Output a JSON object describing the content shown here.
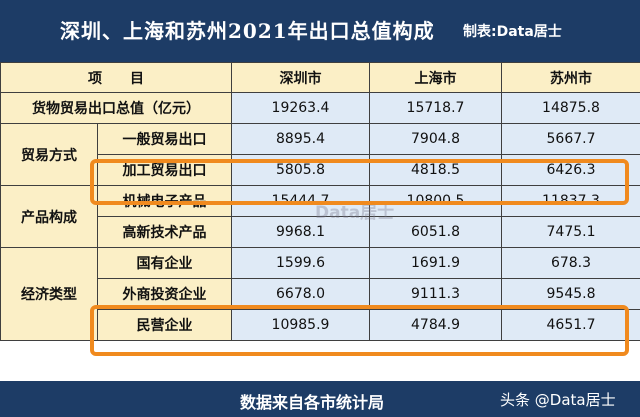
{
  "header": {
    "title": "深圳、上海和苏州2021年出口总值构成",
    "credit": "制表:Data居士"
  },
  "table": {
    "columns": [
      "项　　目",
      "深圳市",
      "上海市",
      "苏州市"
    ],
    "total_row": {
      "label": "货物贸易出口总值（亿元）",
      "values": [
        "19263.4",
        "15718.7",
        "14875.8"
      ]
    },
    "groups": [
      {
        "name": "贸易方式",
        "rows": [
          {
            "label": "一般贸易出口",
            "values": [
              "8895.4",
              "7904.8",
              "5667.7"
            ]
          },
          {
            "label": "加工贸易出口",
            "values": [
              "5805.8",
              "4818.5",
              "6426.3"
            ]
          }
        ]
      },
      {
        "name": "产品构成",
        "rows": [
          {
            "label": "机械电子产品",
            "values": [
              "15444.7",
              "10800.5",
              "11837.3"
            ]
          },
          {
            "label": "高新技术产品",
            "values": [
              "9968.1",
              "6051.8",
              "7475.1"
            ]
          }
        ]
      },
      {
        "name": "经济类型",
        "rows": [
          {
            "label": "国有企业",
            "values": [
              "1599.6",
              "1691.9",
              "678.3"
            ]
          },
          {
            "label": "外商投资企业",
            "values": [
              "6678.0",
              "9111.3",
              "9545.8"
            ]
          },
          {
            "label": "民营企业",
            "values": [
              "10985.9",
              "4784.9",
              "4651.7"
            ]
          }
        ]
      }
    ]
  },
  "watermark": "Data居士",
  "footer": {
    "source": "数据来自各市统计局",
    "platform_watermark": "头条 @Data居士"
  },
  "colors": {
    "header_bg": "#1d3c66",
    "label_bg": "#fbefc6",
    "value_bg": "#dfeaf6",
    "highlight": "#f08a1e"
  }
}
